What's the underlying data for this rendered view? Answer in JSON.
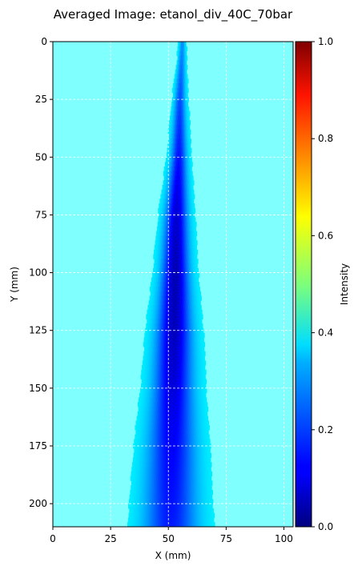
{
  "chart_data": {
    "type": "heatmap",
    "title": "Averaged Image: etanol_div_40C_70bar",
    "xlabel": "X (mm)",
    "ylabel": "Y (mm)",
    "xlim": [
      0,
      104
    ],
    "ylim": [
      210,
      0
    ],
    "xticks": [
      0,
      25,
      50,
      75,
      100
    ],
    "yticks": [
      0,
      25,
      50,
      75,
      100,
      125,
      150,
      175,
      200
    ],
    "grid": true,
    "background_value": 0.37,
    "spray_profile": [
      {
        "y": 2,
        "center_x": 56,
        "width": 1.2,
        "min_value": 0.26
      },
      {
        "y": 25,
        "center_x": 55,
        "width": 2.2,
        "min_value": 0.2
      },
      {
        "y": 50,
        "center_x": 54.5,
        "width": 3.2,
        "min_value": 0.14
      },
      {
        "y": 75,
        "center_x": 53.5,
        "width": 4.5,
        "min_value": 0.08
      },
      {
        "y": 100,
        "center_x": 53,
        "width": 5.5,
        "min_value": 0.05
      },
      {
        "y": 125,
        "center_x": 52.5,
        "width": 7,
        "min_value": 0.06
      },
      {
        "y": 150,
        "center_x": 52,
        "width": 8,
        "min_value": 0.09
      },
      {
        "y": 175,
        "center_x": 51.5,
        "width": 9.5,
        "min_value": 0.12
      },
      {
        "y": 210,
        "center_x": 51,
        "width": 11,
        "min_value": 0.15
      }
    ],
    "colorbar": {
      "label": "Intensity",
      "range": [
        0.0,
        1.0
      ],
      "ticks": [
        "0.0",
        "0.2",
        "0.4",
        "0.6",
        "0.8",
        "1.0"
      ],
      "colormap": "jet"
    }
  }
}
